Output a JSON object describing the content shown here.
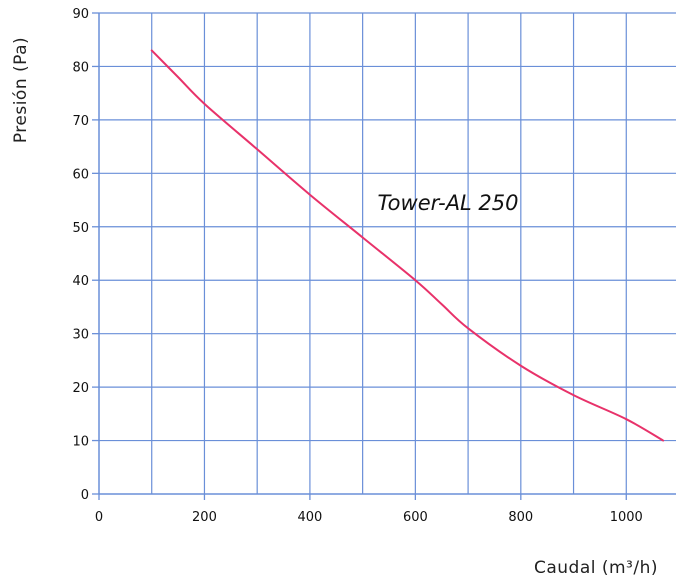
{
  "chart_data": {
    "type": "line",
    "title": "",
    "xlabel": "Caudal (m³/h)",
    "ylabel": "Presión (Pa)",
    "xlim": [
      0,
      1100
    ],
    "ylim": [
      0,
      90
    ],
    "xticks": [
      0,
      200,
      400,
      600,
      800,
      1000
    ],
    "yticks": [
      0,
      10,
      20,
      30,
      40,
      50,
      60,
      70,
      80,
      90
    ],
    "grid": true,
    "grid_color": "#6a8fd8",
    "series": [
      {
        "name": "Tower-AL 250",
        "color": "#e8326a",
        "x": [
          100,
          150,
          200,
          300,
          400,
          500,
          600,
          650,
          700,
          800,
          900,
          1000,
          1070
        ],
        "y": [
          83,
          78,
          73,
          64.5,
          56,
          48,
          40,
          35.5,
          31,
          24,
          18.5,
          14,
          10
        ]
      }
    ]
  }
}
